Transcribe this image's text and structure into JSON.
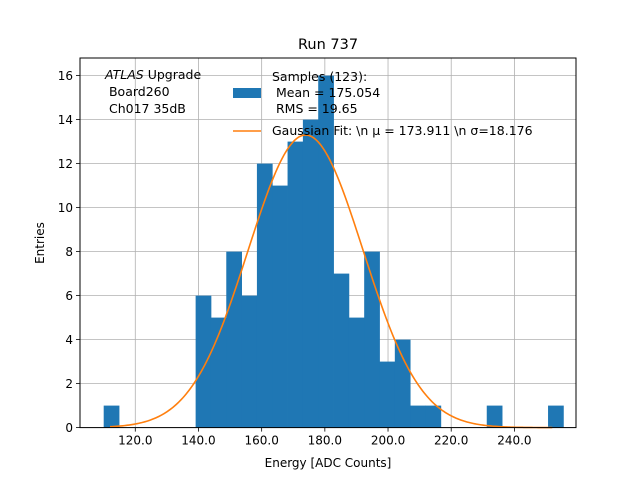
{
  "chart_data": {
    "type": "bar",
    "title": "Run 737",
    "xlabel": "Energy [ADC Counts]",
    "ylabel": "Entries",
    "xlim": [
      102.5,
      259.5
    ],
    "ylim": [
      0,
      16.8
    ],
    "x_ticks": [
      120,
      140,
      160,
      180,
      200,
      220,
      240
    ],
    "x_tick_labels": [
      "120.0",
      "140.0",
      "160.0",
      "180.0",
      "200.0",
      "220.0",
      "240.0"
    ],
    "y_ticks": [
      0,
      2,
      4,
      6,
      8,
      10,
      12,
      14,
      16
    ],
    "y_tick_labels": [
      "0",
      "2",
      "4",
      "6",
      "8",
      "10",
      "12",
      "14",
      "16"
    ],
    "grid": true,
    "bin_width": 4.85,
    "bins": [
      {
        "x": 110.0,
        "count": 1
      },
      {
        "x": 114.85,
        "count": 0
      },
      {
        "x": 119.7,
        "count": 0
      },
      {
        "x": 124.55,
        "count": 0
      },
      {
        "x": 129.4,
        "count": 0
      },
      {
        "x": 134.25,
        "count": 0
      },
      {
        "x": 139.1,
        "count": 6
      },
      {
        "x": 143.95,
        "count": 5
      },
      {
        "x": 148.8,
        "count": 8
      },
      {
        "x": 153.65,
        "count": 6
      },
      {
        "x": 158.5,
        "count": 12
      },
      {
        "x": 163.35,
        "count": 11
      },
      {
        "x": 168.2,
        "count": 13
      },
      {
        "x": 173.05,
        "count": 14
      },
      {
        "x": 177.9,
        "count": 16
      },
      {
        "x": 182.75,
        "count": 7
      },
      {
        "x": 187.6,
        "count": 5
      },
      {
        "x": 192.45,
        "count": 8
      },
      {
        "x": 197.3,
        "count": 3
      },
      {
        "x": 202.15,
        "count": 4
      },
      {
        "x": 207.0,
        "count": 1
      },
      {
        "x": 211.85,
        "count": 1
      },
      {
        "x": 216.7,
        "count": 0
      },
      {
        "x": 221.55,
        "count": 0
      },
      {
        "x": 226.4,
        "count": 0
      },
      {
        "x": 231.25,
        "count": 1
      },
      {
        "x": 236.1,
        "count": 0
      },
      {
        "x": 240.95,
        "count": 0
      },
      {
        "x": 245.8,
        "count": 0
      },
      {
        "x": 250.65,
        "count": 1
      }
    ],
    "fit": {
      "mu": 173.911,
      "sigma": 18.176,
      "amplitude": 13.3,
      "x_range": [
        112,
        252
      ]
    },
    "colors": {
      "bars": "#1f77b4",
      "fit": "#ff7f0e",
      "grid": "#b0b0b0"
    },
    "annotation_lines": [
      "ATLAS Upgrade",
      " Board260",
      " Ch017 35dB"
    ],
    "annotation_italic_word": "ATLAS",
    "annotation_rest_first_line": " Upgrade",
    "legend_position": "top-right",
    "legend": [
      {
        "label_lines": [
          "Samples (123):",
          " Mean = 175.054",
          " RMS = 19.65"
        ],
        "kind": "patch"
      },
      {
        "label": "Gaussian Fit: \\n μ = 173.911 \\n σ=18.176",
        "kind": "line"
      }
    ]
  }
}
